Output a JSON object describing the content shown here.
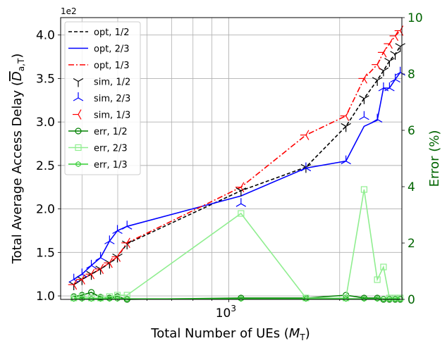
{
  "chart_data": {
    "type": "line",
    "xlabel": "Total Number of UEs (M_T)",
    "xlabel_main": "Total Number of UEs (",
    "xlabel_sym": "M",
    "xlabel_sub": "T",
    "xlabel_end": ")",
    "xscale": "log",
    "xlim": [
      350,
      2950
    ],
    "xticks": [
      {
        "label": "10",
        "sup": "3",
        "value": 1000
      }
    ],
    "left_axis": {
      "label": "Total Average Access Delay (D_{a,T})",
      "label_main": "Total Average Access Delay (",
      "label_sym": "D",
      "label_sub": "a,T",
      "label_end": ")",
      "multiplier": "1e2",
      "ylim": [
        0.96,
        4.2
      ],
      "ticks": [
        {
          "value": 1.0,
          "label": "1.0"
        },
        {
          "value": 1.5,
          "label": "1.5"
        },
        {
          "value": 2.0,
          "label": "2.0"
        },
        {
          "value": 2.5,
          "label": "2.5"
        },
        {
          "value": 3.0,
          "label": "3.0"
        },
        {
          "value": 3.5,
          "label": "3.5"
        },
        {
          "value": 4.0,
          "label": "4.0"
        }
      ]
    },
    "right_axis": {
      "label": "Error (%)",
      "color": "#006400",
      "ylim": [
        0,
        10
      ],
      "ticks": [
        {
          "value": 0,
          "label": "0"
        },
        {
          "value": 2,
          "label": "2"
        },
        {
          "value": 4,
          "label": "4"
        },
        {
          "value": 6,
          "label": "6"
        },
        {
          "value": 8,
          "label": "8"
        },
        {
          "value": 10,
          "label": "10"
        }
      ]
    },
    "grid": true,
    "legend_position": "upper-left",
    "series": [
      {
        "name": "opt, 1/2",
        "axis": "left",
        "style": "dashed",
        "color": "#000000",
        "marker": "none",
        "x": [
          380,
          400,
          424,
          449,
          475,
          499,
          530,
          1080,
          1620,
          2080,
          2330,
          2530,
          2630,
          2730,
          2830,
          2920
        ],
        "y": [
          1.13,
          1.19,
          1.25,
          1.31,
          1.38,
          1.45,
          1.6,
          2.21,
          2.48,
          2.95,
          3.27,
          3.48,
          3.59,
          3.7,
          3.78,
          3.87
        ]
      },
      {
        "name": "opt, 2/3",
        "axis": "left",
        "style": "solid",
        "color": "#0000ff",
        "marker": "none",
        "x": [
          380,
          400,
          424,
          449,
          475,
          499,
          530,
          1080,
          1620,
          2080,
          2330,
          2530,
          2630,
          2730,
          2830,
          2920
        ],
        "y": [
          1.19,
          1.25,
          1.35,
          1.44,
          1.63,
          1.75,
          1.8,
          2.15,
          2.47,
          2.55,
          2.95,
          3.02,
          3.39,
          3.39,
          3.49,
          3.57
        ]
      },
      {
        "name": "opt, 1/3",
        "axis": "left",
        "style": "dashdot",
        "color": "#ff0000",
        "marker": "none",
        "x": [
          380,
          400,
          424,
          449,
          475,
          499,
          530,
          1080,
          1620,
          2080,
          2330,
          2530,
          2630,
          2730,
          2830,
          2920
        ],
        "y": [
          1.13,
          1.19,
          1.25,
          1.31,
          1.38,
          1.45,
          1.61,
          2.25,
          2.85,
          3.07,
          3.5,
          3.66,
          3.8,
          3.9,
          3.99,
          4.05
        ]
      },
      {
        "name": "sim, 1/2",
        "axis": "left",
        "style": "none",
        "color": "#000000",
        "marker": "tri_down",
        "x": [
          380,
          400,
          424,
          449,
          475,
          499,
          530,
          1080,
          1620,
          2080,
          2330,
          2530,
          2630,
          2730,
          2830,
          2920
        ],
        "y": [
          1.13,
          1.19,
          1.25,
          1.31,
          1.38,
          1.45,
          1.6,
          2.21,
          2.48,
          2.95,
          3.27,
          3.48,
          3.59,
          3.7,
          3.78,
          3.87
        ]
      },
      {
        "name": "sim, 2/3",
        "axis": "left",
        "style": "none",
        "color": "#0000ff",
        "marker": "tri_up",
        "x": [
          380,
          400,
          424,
          449,
          475,
          499,
          530,
          1080,
          1620,
          2080,
          2330,
          2530,
          2630,
          2730,
          2830,
          2920
        ],
        "y": [
          1.19,
          1.25,
          1.35,
          1.44,
          1.63,
          1.75,
          1.8,
          2.06,
          2.47,
          2.55,
          3.06,
          3.03,
          3.39,
          3.39,
          3.49,
          3.57
        ]
      },
      {
        "name": "sim, 1/3",
        "axis": "left",
        "style": "none",
        "color": "#ff0000",
        "marker": "tri_left",
        "x": [
          380,
          400,
          424,
          449,
          475,
          499,
          530,
          1080,
          1620,
          2080,
          2330,
          2530,
          2630,
          2730,
          2830,
          2920
        ],
        "y": [
          1.13,
          1.19,
          1.25,
          1.31,
          1.38,
          1.45,
          1.61,
          2.25,
          2.85,
          3.07,
          3.5,
          3.66,
          3.8,
          3.9,
          3.99,
          4.05
        ]
      },
      {
        "name": "err, 1/2",
        "axis": "right",
        "style": "solid",
        "color": "#008000",
        "marker": "circle",
        "x": [
          380,
          400,
          424,
          449,
          475,
          499,
          530,
          1080,
          1620,
          2080,
          2330,
          2530,
          2630,
          2730,
          2830,
          2920
        ],
        "y": [
          0.1,
          0.15,
          0.25,
          0.08,
          0.05,
          0.1,
          0.0,
          0.05,
          0.05,
          0.15,
          0.05,
          0.05,
          0.0,
          0.0,
          0.0,
          0.0
        ]
      },
      {
        "name": "err, 2/3",
        "axis": "right",
        "style": "solid",
        "color": "#90ee90",
        "marker": "square",
        "x": [
          380,
          400,
          424,
          449,
          475,
          499,
          530,
          1080,
          1620,
          2080,
          2330,
          2530,
          2630,
          2730,
          2830,
          2920
        ],
        "y": [
          0.05,
          0.1,
          0.05,
          0.05,
          0.1,
          0.15,
          0.15,
          3.05,
          0.05,
          0.05,
          3.9,
          0.7,
          1.15,
          0.05,
          0.05,
          0.05
        ]
      },
      {
        "name": "err, 1/3",
        "axis": "right",
        "style": "solid",
        "color": "#32cd32",
        "marker": "hexagon",
        "x": [
          380,
          400,
          424,
          449,
          475,
          499,
          530,
          1080,
          1620,
          2080,
          2330,
          2530,
          2630,
          2730,
          2830,
          2920
        ],
        "y": [
          0.02,
          0.02,
          0.02,
          0.02,
          0.02,
          0.02,
          0.02,
          0.02,
          0.02,
          0.02,
          0.02,
          0.02,
          0.02,
          0.02,
          0.02,
          0.02
        ]
      }
    ]
  }
}
